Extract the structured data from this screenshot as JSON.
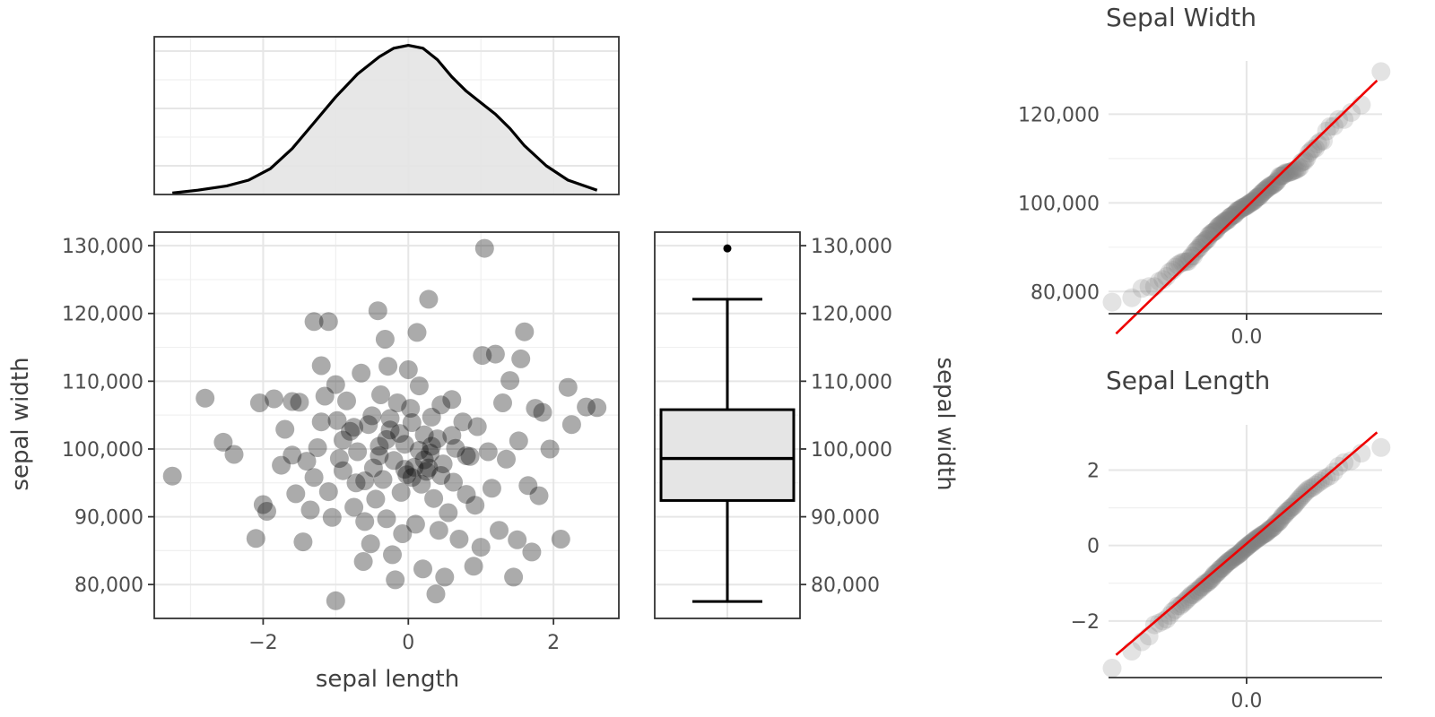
{
  "chart_data": [
    {
      "type": "area",
      "panel": "marginal-density",
      "x": [
        -3.25,
        -2.9,
        -2.5,
        -2.2,
        -1.9,
        -1.6,
        -1.3,
        -1.0,
        -0.7,
        -0.4,
        -0.2,
        0.0,
        0.2,
        0.4,
        0.6,
        0.8,
        1.0,
        1.2,
        1.4,
        1.6,
        1.9,
        2.2,
        2.6
      ],
      "y": [
        0.005,
        0.015,
        0.03,
        0.05,
        0.09,
        0.16,
        0.25,
        0.34,
        0.42,
        0.48,
        0.51,
        0.52,
        0.51,
        0.47,
        0.41,
        0.36,
        0.32,
        0.28,
        0.23,
        0.17,
        0.1,
        0.05,
        0.015
      ],
      "xlim": [
        -3.5,
        2.9
      ],
      "ylim": [
        0,
        0.55
      ],
      "grid": true
    },
    {
      "type": "scatter",
      "panel": "main-scatter",
      "xlabel": "sepal length",
      "ylabel": "sepal width",
      "xlim": [
        -3.5,
        2.9
      ],
      "ylim": [
        75000,
        132000
      ],
      "x_ticks": [
        {
          "value": -2,
          "label": "−2"
        },
        {
          "value": 0,
          "label": "0"
        },
        {
          "value": 2,
          "label": "2"
        }
      ],
      "y_ticks": [
        {
          "value": 80000,
          "label": "80,000"
        },
        {
          "value": 90000,
          "label": "90,000"
        },
        {
          "value": 100000,
          "label": "100,000"
        },
        {
          "value": 110000,
          "label": "110,000"
        },
        {
          "value": 120000,
          "label": "120,000"
        },
        {
          "value": 130000,
          "label": "130,000"
        }
      ],
      "point_color": "#000000",
      "point_opacity": 0.33,
      "grid": true,
      "points": [
        [
          -3.25,
          96000
        ],
        [
          -2.8,
          107500
        ],
        [
          -2.55,
          101000
        ],
        [
          -2.4,
          99200
        ],
        [
          -2.1,
          86800
        ],
        [
          -2.05,
          106800
        ],
        [
          -2.0,
          91800
        ],
        [
          -1.95,
          90800
        ],
        [
          -1.85,
          107400
        ],
        [
          -1.75,
          97600
        ],
        [
          -1.7,
          102900
        ],
        [
          -1.6,
          99100
        ],
        [
          -1.55,
          93400
        ],
        [
          -1.5,
          106900
        ],
        [
          -1.45,
          86300
        ],
        [
          -1.4,
          98200
        ],
        [
          -1.35,
          91000
        ],
        [
          -1.3,
          118800
        ],
        [
          -1.3,
          95800
        ],
        [
          -1.25,
          100200
        ],
        [
          -1.2,
          112300
        ],
        [
          -1.15,
          107800
        ],
        [
          -1.1,
          118800
        ],
        [
          -1.1,
          93700
        ],
        [
          -1.05,
          89900
        ],
        [
          -1.0,
          77600
        ],
        [
          -0.98,
          104200
        ],
        [
          -0.95,
          98600
        ],
        [
          -0.9,
          101300
        ],
        [
          -0.85,
          107100
        ],
        [
          -0.8,
          102600
        ],
        [
          -0.75,
          91400
        ],
        [
          -0.72,
          95000
        ],
        [
          -0.7,
          99600
        ],
        [
          -0.65,
          111200
        ],
        [
          -0.62,
          83400
        ],
        [
          -0.6,
          89300
        ],
        [
          -0.55,
          103600
        ],
        [
          -0.52,
          86000
        ],
        [
          -0.5,
          104900
        ],
        [
          -0.48,
          97200
        ],
        [
          -0.45,
          92600
        ],
        [
          -0.42,
          120400
        ],
        [
          -0.4,
          100400
        ],
        [
          -0.38,
          108000
        ],
        [
          -0.35,
          95500
        ],
        [
          -0.32,
          116200
        ],
        [
          -0.3,
          89700
        ],
        [
          -0.28,
          112200
        ],
        [
          -0.25,
          102800
        ],
        [
          -0.22,
          84400
        ],
        [
          -0.2,
          98300
        ],
        [
          -0.18,
          80700
        ],
        [
          -0.15,
          106800
        ],
        [
          -0.12,
          102300
        ],
        [
          -0.1,
          93600
        ],
        [
          -0.08,
          87500
        ],
        [
          -0.05,
          100700
        ],
        [
          -0.02,
          96200
        ],
        [
          0.0,
          111700
        ],
        [
          0.03,
          106000
        ],
        [
          0.05,
          103900
        ],
        [
          0.08,
          97300
        ],
        [
          0.1,
          88900
        ],
        [
          0.12,
          117200
        ],
        [
          0.15,
          109300
        ],
        [
          0.18,
          94800
        ],
        [
          0.2,
          82300
        ],
        [
          0.22,
          102100
        ],
        [
          0.25,
          96700
        ],
        [
          0.28,
          122100
        ],
        [
          0.3,
          99400
        ],
        [
          0.32,
          104700
        ],
        [
          0.35,
          92700
        ],
        [
          0.38,
          78600
        ],
        [
          0.4,
          101500
        ],
        [
          0.42,
          88000
        ],
        [
          0.45,
          106500
        ],
        [
          0.48,
          97800
        ],
        [
          0.5,
          81100
        ],
        [
          0.55,
          90600
        ],
        [
          0.6,
          107300
        ],
        [
          0.62,
          95100
        ],
        [
          0.65,
          100100
        ],
        [
          0.7,
          86700
        ],
        [
          0.75,
          104000
        ],
        [
          0.8,
          93300
        ],
        [
          0.85,
          98900
        ],
        [
          0.9,
          82700
        ],
        [
          0.92,
          91700
        ],
        [
          0.95,
          103300
        ],
        [
          1.0,
          85500
        ],
        [
          1.02,
          113800
        ],
        [
          1.05,
          129600
        ],
        [
          1.1,
          99600
        ],
        [
          1.15,
          94200
        ],
        [
          1.2,
          114000
        ],
        [
          1.25,
          88000
        ],
        [
          1.3,
          106800
        ],
        [
          1.35,
          98500
        ],
        [
          1.4,
          110100
        ],
        [
          1.45,
          81100
        ],
        [
          1.5,
          86600
        ],
        [
          1.52,
          101200
        ],
        [
          1.55,
          113300
        ],
        [
          1.6,
          117300
        ],
        [
          1.65,
          94600
        ],
        [
          1.7,
          84800
        ],
        [
          1.75,
          106000
        ],
        [
          1.8,
          93100
        ],
        [
          1.85,
          105400
        ],
        [
          1.95,
          100000
        ],
        [
          2.1,
          86700
        ],
        [
          2.2,
          109100
        ],
        [
          2.25,
          103600
        ],
        [
          2.45,
          106200
        ],
        [
          2.6,
          106100
        ],
        [
          -1.6,
          107000
        ],
        [
          -1.0,
          109500
        ],
        [
          -0.9,
          96800
        ],
        [
          -0.6,
          95300
        ],
        [
          -0.4,
          99000
        ],
        [
          -0.3,
          101400
        ],
        [
          -0.25,
          104500
        ],
        [
          -0.05,
          97000
        ],
        [
          0.05,
          95800
        ],
        [
          0.15,
          99800
        ],
        [
          0.22,
          98400
        ],
        [
          0.28,
          97200
        ],
        [
          0.32,
          100400
        ],
        [
          0.45,
          96100
        ],
        [
          0.6,
          102000
        ],
        [
          0.8,
          99000
        ],
        [
          -0.75,
          103200
        ],
        [
          -1.2,
          104000
        ]
      ]
    },
    {
      "type": "box",
      "panel": "marginal-boxplot",
      "ylabel": "sepal width",
      "ylim": [
        75000,
        132000
      ],
      "y_ticks": [
        {
          "value": 80000,
          "label": "80,000"
        },
        {
          "value": 90000,
          "label": "90,000"
        },
        {
          "value": 100000,
          "label": "100,000"
        },
        {
          "value": 110000,
          "label": "110,000"
        },
        {
          "value": 120000,
          "label": "120,000"
        },
        {
          "value": 130000,
          "label": "130,000"
        }
      ],
      "whisker_low": 77500,
      "q1": 92400,
      "median": 98600,
      "q3": 105800,
      "whisker_high": 122100,
      "outliers": [
        129600
      ],
      "box_fill": "#e5e5e5"
    },
    {
      "type": "scatter",
      "panel": "qq-sepal-width",
      "title": "Sepal Width",
      "xlim": [
        -2.75,
        2.7
      ],
      "ylim": [
        75000,
        132000
      ],
      "x_ticks": [
        {
          "value": 0,
          "label": "0.0"
        }
      ],
      "y_ticks": [
        {
          "value": 80000,
          "label": "80,000"
        },
        {
          "value": 100000,
          "label": "100,000"
        },
        {
          "value": 120000,
          "label": "120,000"
        }
      ],
      "line": {
        "x": [
          -2.6,
          2.6
        ],
        "y": [
          70500,
          127600
        ]
      },
      "line_color": "#ee0000",
      "point_color": "#808080",
      "grid": true
    },
    {
      "type": "scatter",
      "panel": "qq-sepal-length",
      "title": "Sepal Length",
      "xlim": [
        -2.75,
        2.7
      ],
      "ylim": [
        -3.5,
        3.2
      ],
      "x_ticks": [
        {
          "value": 0,
          "label": "0.0"
        }
      ],
      "y_ticks": [
        {
          "value": -2,
          "label": "−2"
        },
        {
          "value": 0,
          "label": "0"
        },
        {
          "value": 2,
          "label": "2"
        }
      ],
      "line": {
        "x": [
          -2.6,
          2.6
        ],
        "y": [
          -2.9,
          3.0
        ]
      },
      "line_color": "#ee0000",
      "point_color": "#808080",
      "grid": true
    }
  ]
}
